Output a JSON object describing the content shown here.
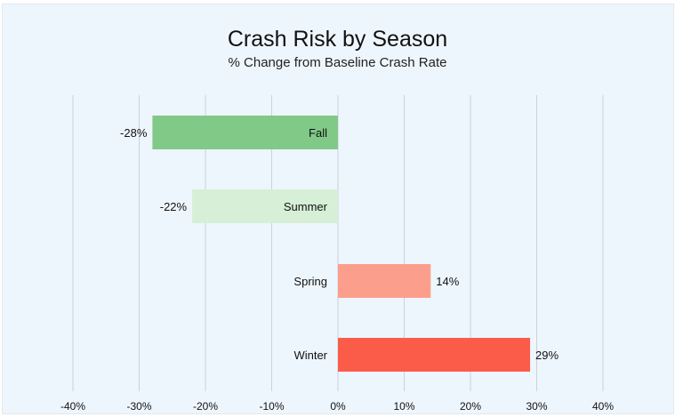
{
  "chart_data": {
    "type": "bar",
    "orientation": "horizontal",
    "title": "Crash Risk by Season",
    "subtitle": "% Change from Baseline Crash Rate",
    "categories": [
      "Fall",
      "Summer",
      "Spring",
      "Winter"
    ],
    "values": [
      -28,
      -22,
      14,
      29
    ],
    "value_labels": [
      "-28%",
      "-22%",
      "14%",
      "29%"
    ],
    "colors": [
      "#80c987",
      "#d6efd6",
      "#fc9e8c",
      "#fb5c4a"
    ],
    "xlim": [
      -40,
      40
    ],
    "xticks": [
      -40,
      -30,
      -20,
      -10,
      0,
      10,
      20,
      30,
      40
    ],
    "xtick_labels": [
      "-40%",
      "-30%",
      "-20%",
      "-10%",
      "0%",
      "10%",
      "20%",
      "30%",
      "40%"
    ],
    "grid": "vertical",
    "background": "#eef6fd",
    "xlabel": "",
    "ylabel": ""
  }
}
